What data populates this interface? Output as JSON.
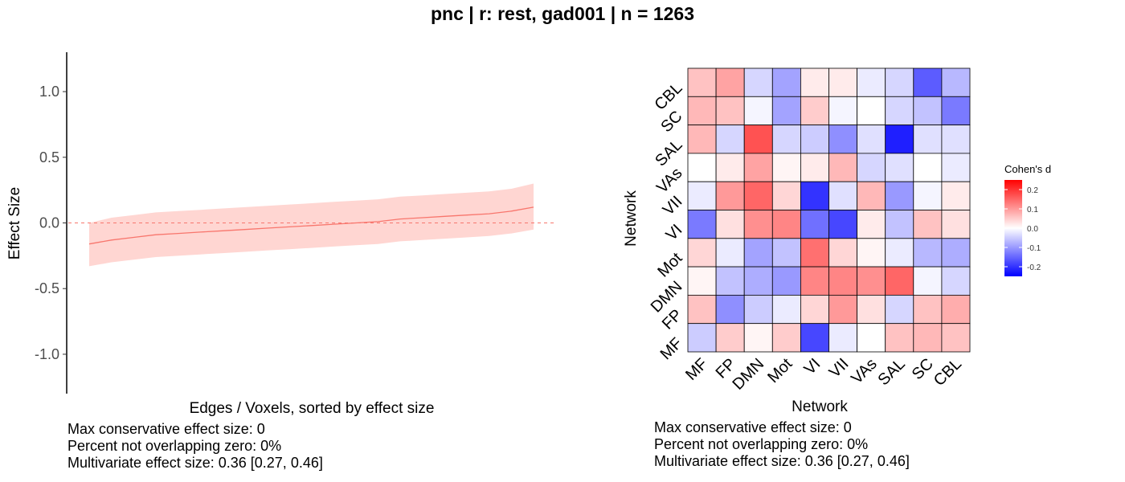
{
  "title": "pnc | r: rest, gad001 | n = 1263",
  "chart_data": [
    {
      "type": "line",
      "xlabel": "Edges / Voxels, sorted by effect size",
      "ylabel": "Effect Size",
      "ylim": [
        -1.3,
        1.3
      ],
      "yticks": [
        -1.0,
        -0.5,
        0.0,
        0.5,
        1.0
      ],
      "ytick_labels": [
        "-1.0",
        "-0.5",
        "0.0",
        "0.5",
        "1.0"
      ],
      "reference_line": 0,
      "series": [
        {
          "x": [
            0,
            0.05,
            0.1,
            0.15,
            0.2,
            0.25,
            0.3,
            0.35,
            0.4,
            0.45,
            0.5,
            0.55,
            0.6,
            0.65,
            0.7,
            0.75,
            0.8,
            0.85,
            0.9,
            0.95,
            1
          ],
          "values": [
            -0.16,
            -0.13,
            -0.11,
            -0.09,
            -0.08,
            -0.07,
            -0.06,
            -0.05,
            -0.04,
            -0.03,
            -0.02,
            -0.01,
            0.0,
            0.01,
            0.03,
            0.04,
            0.05,
            0.06,
            0.07,
            0.09,
            0.12
          ],
          "lower": [
            -0.33,
            -0.3,
            -0.28,
            -0.26,
            -0.25,
            -0.24,
            -0.23,
            -0.22,
            -0.21,
            -0.2,
            -0.19,
            -0.18,
            -0.17,
            -0.16,
            -0.14,
            -0.13,
            -0.12,
            -0.11,
            -0.1,
            -0.08,
            -0.05
          ],
          "upper": [
            0.0,
            0.04,
            0.06,
            0.08,
            0.09,
            0.1,
            0.11,
            0.12,
            0.13,
            0.14,
            0.15,
            0.16,
            0.17,
            0.18,
            0.2,
            0.21,
            0.22,
            0.23,
            0.24,
            0.26,
            0.3
          ]
        }
      ],
      "colors": {
        "line": "#f8766d",
        "band": "#ffd6d2",
        "reference": "#f8766d",
        "axis": "#000000"
      }
    },
    {
      "type": "heatmap",
      "xlabel": "Network",
      "ylabel": "Network",
      "x_categories": [
        "MF",
        "FP",
        "DMN",
        "Mot",
        "VI",
        "VII",
        "VAs",
        "SAL",
        "SC",
        "CBL"
      ],
      "y_categories": [
        "MF",
        "FP",
        "DMN",
        "Mot",
        "VI",
        "VII",
        "VAs",
        "SAL",
        "SC",
        "CBL"
      ],
      "values_top_to_bottom": [
        [
          0.06,
          0.09,
          -0.04,
          -0.09,
          0.02,
          0.02,
          -0.02,
          -0.04,
          -0.16,
          -0.07
        ],
        [
          0.07,
          0.06,
          -0.01,
          -0.09,
          0.05,
          -0.01,
          0.0,
          -0.04,
          -0.06,
          -0.13
        ],
        [
          0.07,
          -0.04,
          0.17,
          -0.04,
          -0.05,
          -0.11,
          -0.03,
          -0.22,
          -0.03,
          -0.03
        ],
        [
          0.0,
          0.02,
          0.09,
          0.01,
          0.02,
          0.07,
          -0.04,
          -0.03,
          0.0,
          -0.02
        ],
        [
          -0.02,
          0.1,
          0.15,
          0.04,
          -0.2,
          -0.03,
          0.07,
          -0.1,
          -0.01,
          0.02
        ],
        [
          -0.13,
          0.03,
          0.11,
          0.12,
          -0.14,
          -0.18,
          0.02,
          -0.06,
          0.06,
          0.03
        ],
        [
          0.04,
          -0.02,
          -0.09,
          -0.06,
          0.14,
          0.04,
          0.01,
          -0.02,
          -0.07,
          -0.08
        ],
        [
          0.01,
          -0.06,
          -0.08,
          -0.1,
          0.12,
          0.12,
          0.11,
          0.15,
          -0.01,
          -0.04
        ],
        [
          0.06,
          -0.11,
          -0.05,
          -0.02,
          0.04,
          0.1,
          0.03,
          -0.04,
          0.06,
          0.08
        ],
        [
          -0.05,
          0.05,
          0.01,
          0.05,
          -0.18,
          -0.02,
          0.0,
          0.06,
          0.07,
          0.06
        ]
      ],
      "legend": {
        "title": "Cohen's d",
        "ticks": [
          0.2,
          0.1,
          0.0,
          -0.1,
          -0.2
        ],
        "tick_labels": [
          "0.2",
          "0.1",
          "0.0",
          "-0.1",
          "-0.2"
        ],
        "range": [
          -0.25,
          0.25
        ],
        "placement": "right"
      },
      "colors": {
        "low": "#0000ff",
        "mid": "#ffffff",
        "high": "#ff0000",
        "grid": "#000000"
      }
    }
  ],
  "left_stats": {
    "line1": "Max conservative effect size: 0",
    "line2": "Percent not overlapping zero: 0%",
    "line3": "Multivariate effect size: 0.36 [0.27, 0.46]"
  },
  "right_stats": {
    "line1": "Max conservative effect size: 0",
    "line2": "Percent not overlapping zero: 0%",
    "line3": "Multivariate effect size: 0.36 [0.27, 0.46]"
  }
}
